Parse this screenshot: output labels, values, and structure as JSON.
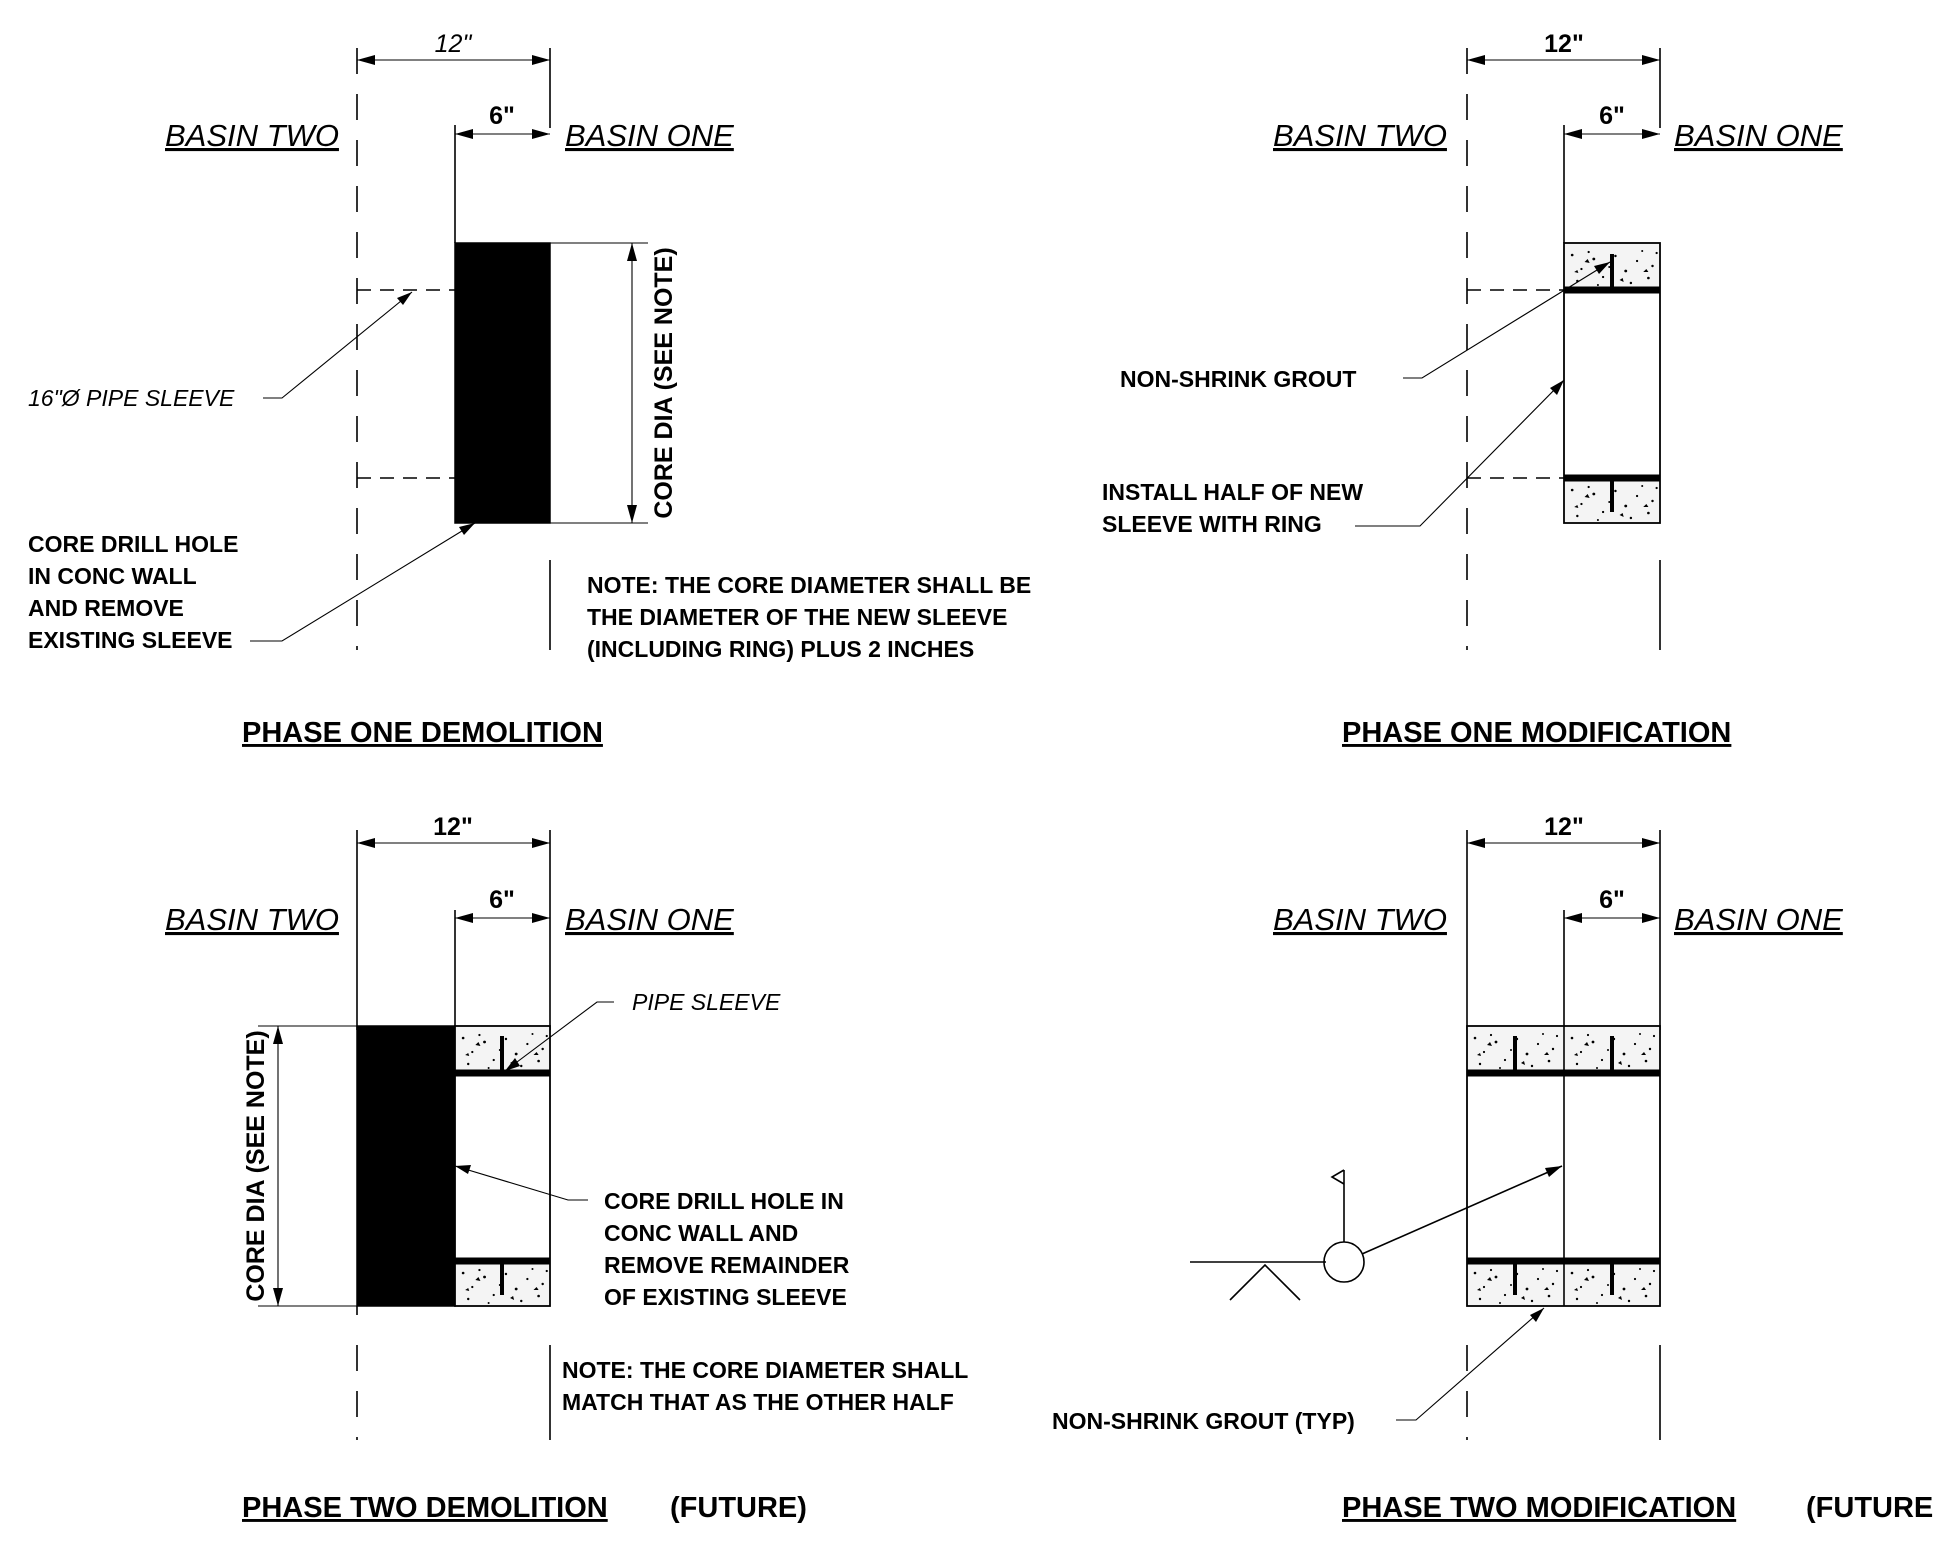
{
  "panels": {
    "phase_one_demolition": {
      "title": "PHASE ONE DEMOLITION",
      "dim_overall": "12\"",
      "dim_half": "6\"",
      "basin_left": "BASIN TWO",
      "basin_right": "BASIN ONE",
      "core_dia_label": "CORE DIA (SEE NOTE)",
      "sleeve_label": "16\"Ø PIPE SLEEVE",
      "core_drill_label": [
        "CORE DRILL HOLE",
        "IN CONC WALL",
        "AND REMOVE",
        "EXISTING SLEEVE"
      ],
      "note": [
        "NOTE: THE CORE DIAMETER SHALL BE",
        "THE DIAMETER OF THE NEW SLEEVE",
        "(INCLUDING RING) PLUS 2 INCHES"
      ]
    },
    "phase_one_modification": {
      "title": "PHASE ONE MODIFICATION",
      "dim_overall": "12\"",
      "dim_half": "6\"",
      "basin_left": "BASIN TWO",
      "basin_right": "BASIN ONE",
      "grout_label": "NON-SHRINK GROUT",
      "install_label": [
        "INSTALL HALF OF NEW",
        "SLEEVE WITH RING"
      ]
    },
    "phase_two_demolition": {
      "title": "PHASE TWO DEMOLITION",
      "title_suffix": "(FUTURE)",
      "dim_overall": "12\"",
      "dim_half": "6\"",
      "basin_left": "BASIN TWO",
      "basin_right": "BASIN ONE",
      "core_dia_label": "CORE DIA (SEE NOTE)",
      "sleeve_label": "PIPE SLEEVE",
      "core_drill_label": [
        "CORE DRILL HOLE IN",
        "CONC WALL AND",
        "REMOVE REMAINDER",
        "OF EXISTING SLEEVE"
      ],
      "note": [
        "NOTE: THE CORE DIAMETER SHALL",
        "MATCH THAT AS THE OTHER HALF"
      ]
    },
    "phase_two_modification": {
      "title": "PHASE TWO MODIFICATION",
      "title_suffix": "(FUTURE",
      "dim_overall": "12\"",
      "dim_half": "6\"",
      "basin_left": "BASIN TWO",
      "basin_right": "BASIN ONE",
      "grout_label": "NON-SHRINK GROUT (TYP)"
    }
  },
  "icons": {
    "weld_symbol": "weld-symbol-icon"
  }
}
